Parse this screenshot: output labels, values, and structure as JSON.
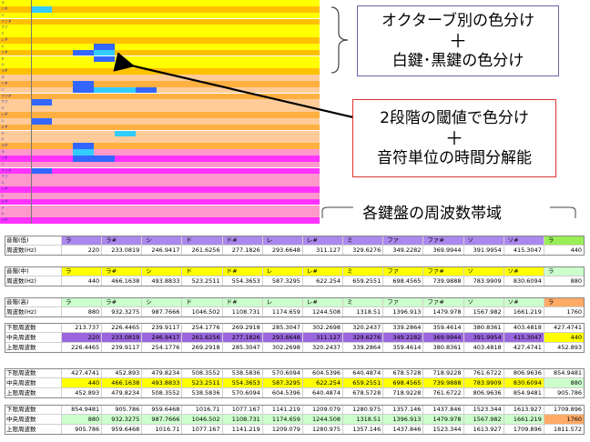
{
  "colors": {
    "yellow": "#ffff00",
    "gold": "#ffc000",
    "peach": "#ffcc99",
    "orange": "#ffb040",
    "magenta": "#ff33ff",
    "pink": "#ff99cc",
    "note_blue": "#3366ff",
    "note_cyan": "#33ccff",
    "purple": "#aa88ee",
    "light_green": "#ccffcc",
    "green": "#99ee55",
    "salmon": "#ffaa66",
    "violet_row": "#9966dd"
  },
  "piano_roll": {
    "rows": [
      {
        "label": "ラ",
        "color": "yellow"
      },
      {
        "label": "ソ#",
        "color": "gold"
      },
      {
        "label": "ソ",
        "color": "yellow"
      },
      {
        "label": "ファ#",
        "color": "gold"
      },
      {
        "label": "ファ",
        "color": "yellow"
      },
      {
        "label": "ミ",
        "color": "yellow"
      },
      {
        "label": "レ#",
        "color": "gold"
      },
      {
        "label": "レ",
        "color": "yellow"
      },
      {
        "label": "ド#",
        "color": "gold"
      },
      {
        "label": "ド",
        "color": "yellow"
      },
      {
        "label": "シ",
        "color": "yellow"
      },
      {
        "label": "ラ#",
        "color": "gold"
      },
      {
        "label": "ラ",
        "color": "peach"
      },
      {
        "label": "ソ#",
        "color": "orange"
      },
      {
        "label": "ソ",
        "color": "peach"
      },
      {
        "label": "ファ#",
        "color": "orange"
      },
      {
        "label": "ファ",
        "color": "peach"
      },
      {
        "label": "ミ",
        "color": "peach"
      },
      {
        "label": "レ#",
        "color": "orange"
      },
      {
        "label": "レ",
        "color": "peach"
      },
      {
        "label": "ド#",
        "color": "orange"
      },
      {
        "label": "ド",
        "color": "peach"
      },
      {
        "label": "シ",
        "color": "peach"
      },
      {
        "label": "ラ#",
        "color": "orange"
      },
      {
        "label": "ラ",
        "color": "pink"
      },
      {
        "label": "ソ#",
        "color": "magenta"
      },
      {
        "label": "ソ",
        "color": "pink"
      },
      {
        "label": "ファ#",
        "color": "magenta"
      },
      {
        "label": "ファ",
        "color": "pink"
      },
      {
        "label": "ミ",
        "color": "pink"
      },
      {
        "label": "レ#",
        "color": "magenta"
      },
      {
        "label": "レ",
        "color": "pink"
      },
      {
        "label": "ド#",
        "color": "magenta"
      },
      {
        "label": "ド",
        "color": "pink"
      },
      {
        "label": "シ",
        "color": "pink"
      },
      {
        "label": "ラ#",
        "color": "magenta"
      }
    ],
    "notes": [
      {
        "row": 1,
        "col": 0,
        "color": "note_cyan"
      },
      {
        "row": 7,
        "col": 3,
        "color": "note_blue"
      },
      {
        "row": 8,
        "col": 3,
        "color": "note_cyan"
      },
      {
        "row": 8,
        "col": 2,
        "color": "note_blue"
      },
      {
        "row": 9,
        "col": 3,
        "color": "note_blue"
      },
      {
        "row": 13,
        "col": 2,
        "color": "note_blue"
      },
      {
        "row": 14,
        "col": 2,
        "color": "note_blue"
      },
      {
        "row": 14,
        "col": 3,
        "color": "note_cyan"
      },
      {
        "row": 14,
        "col": 4,
        "color": "note_cyan"
      },
      {
        "row": 14,
        "col": 5,
        "color": "note_blue"
      },
      {
        "row": 16,
        "col": 0,
        "color": "note_blue"
      },
      {
        "row": 19,
        "col": 0,
        "color": "note_blue"
      },
      {
        "row": 21,
        "col": 4,
        "color": "note_cyan"
      },
      {
        "row": 23,
        "col": 2,
        "color": "note_blue"
      },
      {
        "row": 24,
        "col": 2,
        "color": "note_cyan"
      },
      {
        "row": 25,
        "col": 2,
        "color": "note_blue"
      },
      {
        "row": 25,
        "col": 3,
        "color": "note_blue"
      },
      {
        "row": 27,
        "col": 0,
        "color": "note_blue"
      }
    ]
  },
  "callouts": {
    "c1_line1": "オクターブ別の色分け",
    "c1_plus": "＋",
    "c1_line2": "白鍵･黒鍵の色分け",
    "c2_line1": "2段階の閾値で色分け",
    "c2_plus": "＋",
    "c2_line2": "音符単位の時間分解能"
  },
  "freq_title": "各鍵盤の周波数帯域",
  "tables": {
    "notes_row": [
      "ラ",
      "ラ#",
      "シ",
      "ド",
      "ド#",
      "レ",
      "レ#",
      "ミ",
      "ファ",
      "ファ#",
      "ソ",
      "ソ#",
      "ラ"
    ],
    "low": {
      "note_label": "音階(低)",
      "freq_label": "周波数(Hz)",
      "values": [
        "220",
        "233.0819",
        "246.9417",
        "261.6256",
        "277.1826",
        "293.6648",
        "311.127",
        "329.6276",
        "349.2282",
        "369.9944",
        "391.9954",
        "415.3047",
        "440"
      ]
    },
    "mid": {
      "note_label": "音階(中)",
      "freq_label": "周波数(Hz)",
      "values": [
        "440",
        "466.1638",
        "493.8833",
        "523.2511",
        "554.3653",
        "587.3295",
        "622.254",
        "659.2551",
        "698.4565",
        "739.9888",
        "783.9909",
        "830.6094",
        "880"
      ]
    },
    "high": {
      "note_label": "音階(高)",
      "freq_label": "周波数(Hz)",
      "values": [
        "880",
        "932.3275",
        "987.7666",
        "1046.502",
        "1108.731",
        "1174.659",
        "1244.508",
        "1318.51",
        "1396.913",
        "1479.978",
        "1567.982",
        "1661.219",
        "1760"
      ]
    },
    "band_labels": [
      "下限周波数",
      "中央周波数",
      "上限周波数"
    ],
    "band_low": {
      "lower": [
        "213.737",
        "226.4465",
        "239.9117",
        "254.1776",
        "269.2918",
        "285.3047",
        "302.2698",
        "320.2437",
        "339.2864",
        "359.4614",
        "380.8361",
        "403.4818",
        "427.4741"
      ],
      "center": [
        "220",
        "233.0819",
        "246.9417",
        "261.6256",
        "277.1826",
        "293.6648",
        "311.127",
        "329.6276",
        "349.2282",
        "369.9944",
        "391.9954",
        "415.3047",
        "440"
      ],
      "upper": [
        "226.4465",
        "239.9117",
        "254.1776",
        "269.2918",
        "285.3047",
        "302.2698",
        "320.2437",
        "339.2864",
        "359.4614",
        "380.8361",
        "403.4818",
        "427.4741",
        "452.893"
      ]
    },
    "band_mid": {
      "lower": [
        "427.4741",
        "452.893",
        "479.8234",
        "508.3552",
        "538.5836",
        "570.6094",
        "604.5396",
        "640.4874",
        "678.5728",
        "718.9228",
        "761.6722",
        "806.9636",
        "854.9481"
      ],
      "center": [
        "440",
        "466.1638",
        "493.8833",
        "523.2511",
        "554.3653",
        "587.3295",
        "622.254",
        "659.2551",
        "698.4565",
        "739.9888",
        "783.9909",
        "830.6094",
        "880"
      ],
      "upper": [
        "452.893",
        "479.8234",
        "508.3552",
        "538.5836",
        "570.6094",
        "604.5396",
        "640.4874",
        "678.5728",
        "718.9228",
        "761.6722",
        "806.9636",
        "854.9481",
        "905.786"
      ]
    },
    "band_high": {
      "lower": [
        "854.9481",
        "905.786",
        "959.6468",
        "1016.71",
        "1077.167",
        "1141.219",
        "1209.079",
        "1280.975",
        "1357.146",
        "1437.846",
        "1523.344",
        "1613.927",
        "1709.896"
      ],
      "center": [
        "880",
        "932.3275",
        "987.7666",
        "1046.502",
        "1108.731",
        "1174.659",
        "1244.508",
        "1318.51",
        "1396.913",
        "1479.978",
        "1567.982",
        "1661.219",
        "1760"
      ],
      "upper": [
        "905.786",
        "959.6468",
        "1016.71",
        "1077.167",
        "1141.219",
        "1209.079",
        "1280.975",
        "1357.146",
        "1437.846",
        "1523.344",
        "1613.927",
        "1709.896",
        "1811.572"
      ]
    }
  }
}
